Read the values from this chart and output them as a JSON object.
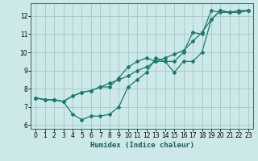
{
  "background_color": "#cce8e8",
  "grid_color": "#aacccc",
  "line_color": "#1a7a6e",
  "xlabel": "Humidex (Indice chaleur)",
  "xlim": [
    -0.5,
    23.5
  ],
  "ylim": [
    5.8,
    12.7
  ],
  "xticks": [
    0,
    1,
    2,
    3,
    4,
    5,
    6,
    7,
    8,
    9,
    10,
    11,
    12,
    13,
    14,
    15,
    16,
    17,
    18,
    19,
    20,
    21,
    22,
    23
  ],
  "yticks": [
    6,
    7,
    8,
    9,
    10,
    11,
    12
  ],
  "line1_x": [
    0,
    1,
    2,
    3,
    4,
    5,
    6,
    7,
    8,
    9,
    10,
    11,
    12,
    13,
    14,
    15,
    16,
    17,
    18,
    19,
    20,
    21,
    22,
    23
  ],
  "line1_y": [
    7.5,
    7.4,
    7.4,
    7.3,
    6.6,
    6.3,
    6.5,
    6.5,
    6.6,
    7.0,
    8.1,
    8.5,
    8.9,
    9.7,
    9.5,
    8.9,
    9.5,
    9.5,
    10.0,
    11.8,
    12.3,
    12.2,
    12.2,
    12.3
  ],
  "line2_x": [
    0,
    1,
    2,
    3,
    4,
    5,
    6,
    7,
    8,
    9,
    10,
    11,
    12,
    13,
    14,
    15,
    16,
    17,
    18,
    19,
    20,
    21,
    22,
    23
  ],
  "line2_y": [
    7.5,
    7.4,
    7.4,
    7.3,
    7.6,
    7.8,
    7.9,
    8.1,
    8.3,
    8.5,
    8.7,
    9.0,
    9.2,
    9.5,
    9.7,
    9.9,
    10.1,
    10.6,
    11.1,
    11.8,
    12.3,
    12.2,
    12.2,
    12.3
  ],
  "line3_x": [
    0,
    1,
    2,
    3,
    4,
    5,
    6,
    7,
    8,
    9,
    10,
    11,
    12,
    13,
    14,
    15,
    16,
    17,
    18,
    19,
    20,
    21,
    22,
    23
  ],
  "line3_y": [
    7.5,
    7.4,
    7.4,
    7.3,
    7.6,
    7.8,
    7.9,
    8.1,
    8.1,
    8.6,
    9.2,
    9.5,
    9.7,
    9.5,
    9.5,
    9.5,
    10.0,
    11.1,
    11.0,
    12.3,
    12.2,
    12.2,
    12.3,
    12.3
  ]
}
